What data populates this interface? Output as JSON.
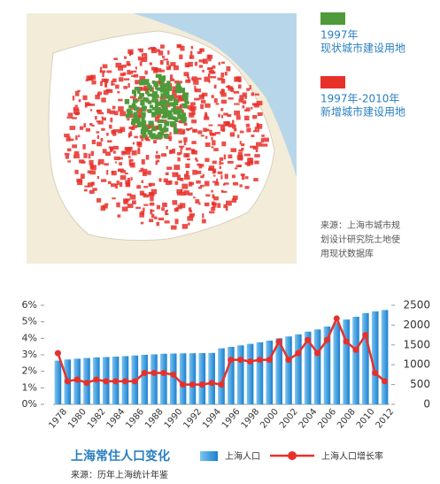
{
  "map": {
    "legend": [
      {
        "year": "1997年",
        "label": "现状城市建设用地",
        "color": "#4f9a3a"
      },
      {
        "year": "1997年-2010年",
        "label": "新增城市建设用地",
        "color": "#e8302a"
      }
    ],
    "source": [
      "来源：上海市城市规",
      "划设计研究院土地使",
      "用现状数据库"
    ]
  },
  "chart_data": {
    "type": "bar",
    "title": "上海常住人口变化",
    "source": "来源：历年上海统计年鉴",
    "categories": [
      "1978",
      null,
      "1980",
      null,
      "1982",
      null,
      "1984",
      null,
      "1986",
      null,
      "1988",
      null,
      "1990",
      null,
      "1992",
      null,
      "1994",
      null,
      "1996",
      null,
      "1998",
      null,
      "2000",
      null,
      "2002",
      null,
      "2004",
      null,
      "2006",
      null,
      "2008",
      null,
      "2010",
      null,
      "2012"
    ],
    "series": [
      {
        "name": "上海人口",
        "type": "bar",
        "axis": "y2",
        "color": "#2b8fd8",
        "values": [
          1104,
          1132,
          1152,
          1169,
          1186,
          1194,
          1205,
          1217,
          1233,
          1250,
          1262,
          1277,
          1283,
          1287,
          1289,
          1294,
          1298,
          1414,
          1451,
          1489,
          1527,
          1567,
          1609,
          1668,
          1713,
          1766,
          1835,
          1890,
          1964,
          2064,
          2141,
          2210,
          2303,
          2347,
          2380
        ]
      },
      {
        "name": "上海人口增长率",
        "type": "line",
        "axis": "y",
        "color": "#e8302a",
        "values": [
          3.1,
          1.4,
          1.5,
          1.3,
          1.5,
          1.4,
          1.4,
          1.4,
          1.4,
          1.9,
          1.9,
          1.9,
          1.8,
          1.2,
          1.2,
          1.2,
          1.3,
          1.2,
          2.7,
          2.7,
          2.6,
          2.7,
          2.7,
          3.8,
          2.7,
          3.1,
          3.9,
          3.1,
          3.9,
          5.2,
          3.8,
          3.3,
          4.2,
          1.9,
          1.4
        ]
      }
    ],
    "ylim": [
      0,
      6
    ],
    "yticks": [
      {
        "value": 0,
        "label": "0%"
      },
      {
        "value": 1,
        "label": "1%"
      },
      {
        "value": 2,
        "label": "2%"
      },
      {
        "value": 3,
        "label": "3%"
      },
      {
        "value": 4,
        "label": "4%"
      },
      {
        "value": 5,
        "label": "5%"
      },
      {
        "value": 6,
        "label": "6%"
      }
    ],
    "y2lim": [
      0,
      2500
    ],
    "y2ticks": [
      0,
      500,
      1000,
      1500,
      2000,
      2500
    ],
    "grid": false
  }
}
